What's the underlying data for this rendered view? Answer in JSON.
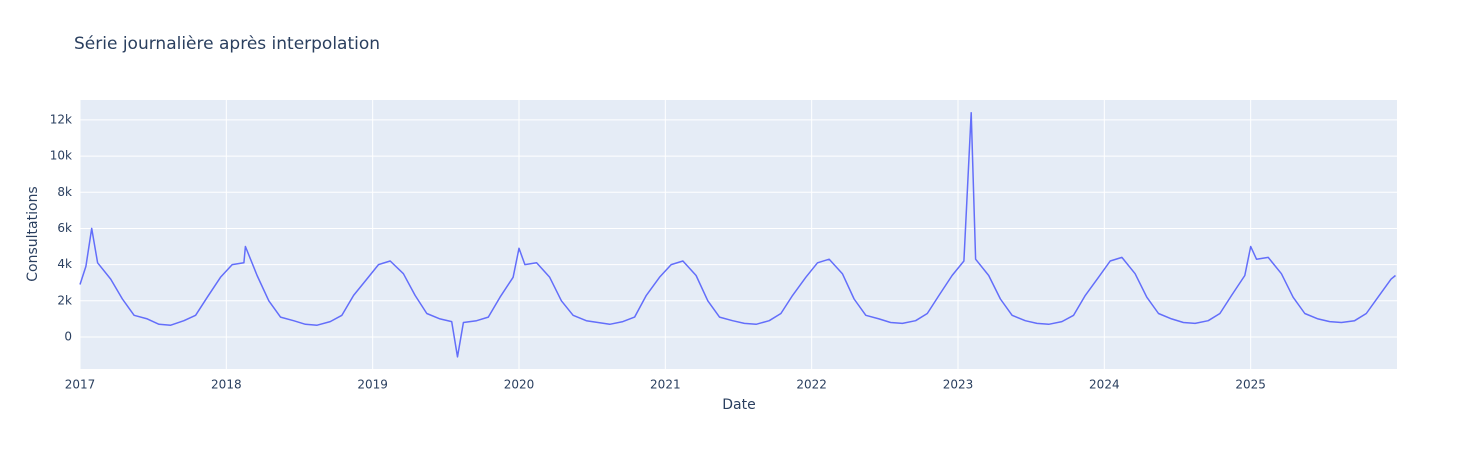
{
  "chart_data": {
    "type": "line",
    "title": "Série journalière après interpolation",
    "x_label": "Date",
    "y_label": "Consultations",
    "xlim": [
      2017,
      2026
    ],
    "ylim": [
      -1770,
      13100
    ],
    "xticks": [
      2017,
      2018,
      2019,
      2020,
      2021,
      2022,
      2023,
      2024,
      2025
    ],
    "yticks": [
      0,
      {
        "value": 2000,
        "label": "2k"
      },
      {
        "value": 4000,
        "label": "4k"
      },
      {
        "value": 6000,
        "label": "6k"
      },
      {
        "value": 8000,
        "label": "8k"
      },
      {
        "value": 10000,
        "label": "10k"
      },
      {
        "value": 12000,
        "label": "12k"
      }
    ],
    "grid": true,
    "series": [
      {
        "color": "#636efa",
        "x": [
          2017,
          2017.04,
          2017.08,
          2017.12,
          2017.21,
          2017.29,
          2017.37,
          2017.46,
          2017.54,
          2017.62,
          2017.71,
          2017.79,
          2017.87,
          2017.96,
          2018.04,
          2018.12,
          2018.13,
          2018.21,
          2018.29,
          2018.37,
          2018.46,
          2018.54,
          2018.62,
          2018.71,
          2018.79,
          2018.87,
          2018.96,
          2019.04,
          2019.12,
          2019.21,
          2019.29,
          2019.37,
          2019.46,
          2019.54,
          2019.58,
          2019.62,
          2019.71,
          2019.79,
          2019.87,
          2019.96,
          2020.0,
          2020.04,
          2020.12,
          2020.21,
          2020.29,
          2020.37,
          2020.46,
          2020.54,
          2020.62,
          2020.71,
          2020.79,
          2020.87,
          2020.96,
          2021.04,
          2021.12,
          2021.21,
          2021.29,
          2021.37,
          2021.46,
          2021.54,
          2021.62,
          2021.71,
          2021.79,
          2021.87,
          2021.96,
          2022.04,
          2022.12,
          2022.21,
          2022.29,
          2022.37,
          2022.46,
          2022.54,
          2022.62,
          2022.71,
          2022.79,
          2022.87,
          2022.96,
          2023.04,
          2023.09,
          2023.12,
          2023.21,
          2023.29,
          2023.37,
          2023.46,
          2023.54,
          2023.62,
          2023.71,
          2023.79,
          2023.87,
          2023.96,
          2024.04,
          2024.12,
          2024.21,
          2024.29,
          2024.37,
          2024.46,
          2024.54,
          2024.62,
          2024.71,
          2024.79,
          2024.87,
          2024.96,
          2025.0,
          2025.04,
          2025.12,
          2025.21,
          2025.29,
          2025.37,
          2025.46,
          2025.54,
          2025.62,
          2025.71,
          2025.79,
          2025.87,
          2025.96,
          2025.99
        ],
        "values": [
          2900,
          3900,
          6000,
          4100,
          3200,
          2100,
          1200,
          1000,
          700,
          650,
          900,
          1200,
          2200,
          3300,
          4000,
          4100,
          5000,
          3400,
          2000,
          1100,
          900,
          700,
          650,
          850,
          1200,
          2300,
          3200,
          4000,
          4200,
          3500,
          2300,
          1300,
          1000,
          850,
          -1100,
          800,
          900,
          1100,
          2200,
          3300,
          4900,
          4000,
          4100,
          3300,
          2000,
          1200,
          900,
          800,
          700,
          850,
          1100,
          2300,
          3300,
          4000,
          4200,
          3400,
          2000,
          1100,
          900,
          750,
          700,
          900,
          1300,
          2300,
          3300,
          4100,
          4300,
          3500,
          2100,
          1200,
          1000,
          800,
          750,
          900,
          1300,
          2300,
          3400,
          4200,
          12400,
          4300,
          3400,
          2100,
          1200,
          900,
          750,
          700,
          850,
          1200,
          2300,
          3300,
          4200,
          4400,
          3500,
          2200,
          1300,
          1000,
          800,
          750,
          900,
          1300,
          2300,
          3400,
          5000,
          4300,
          4400,
          3500,
          2200,
          1300,
          1000,
          850,
          800,
          900,
          1300,
          2200,
          3200,
          3400
        ]
      }
    ]
  }
}
